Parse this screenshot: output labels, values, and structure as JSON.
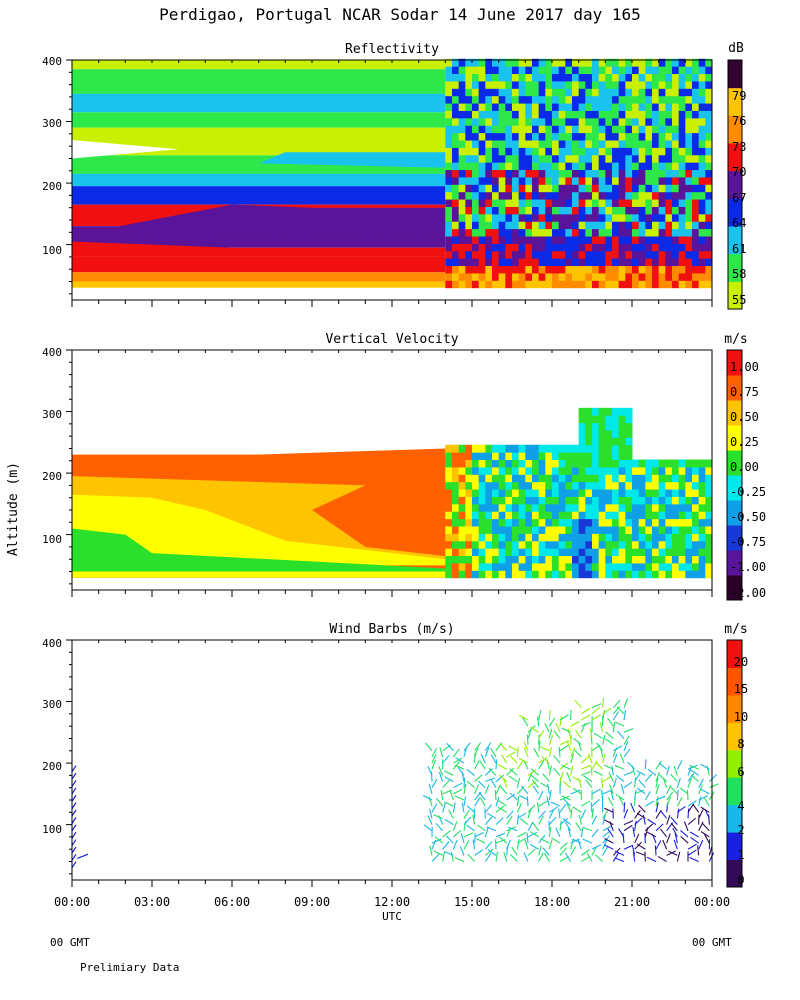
{
  "header": {
    "title": "Perdigao, Portugal  NCAR Sodar  14 June 2017  day 165"
  },
  "footer": {
    "gmt_left": "00 GMT",
    "gmt_right": "00 GMT",
    "note": "Prelimiary Data"
  },
  "colors": {
    "reflectivity": [
      "#c8f000",
      "#2ee84a",
      "#19c3ee",
      "#0a2ae8",
      "#5a1499",
      "#f01010",
      "#ff8c00",
      "#ffc400",
      "#320530"
    ],
    "velocity": [
      "#2a0028",
      "#5a1499",
      "#1838d8",
      "#10a0e8",
      "#00e8e8",
      "#2ae02a",
      "#ffff00",
      "#ffc400",
      "#ff6000",
      "#f01010"
    ],
    "wind": [
      "#330a55",
      "#1a20e0",
      "#18b8e8",
      "#20e060",
      "#90f000",
      "#ffc400",
      "#ff8800",
      "#ff5500",
      "#f01010"
    ]
  },
  "chart_data": [
    {
      "type": "heatmap",
      "title": "Reflectivity",
      "xlabel": "",
      "ylabel": "",
      "xlim": [
        0,
        24
      ],
      "ylim": [
        10,
        400
      ],
      "yticks": [
        "100",
        "200",
        "300",
        "400"
      ],
      "colorbar": {
        "unit": "dB",
        "labels": [
          "55",
          "58",
          "61",
          "64",
          "67",
          "70",
          "73",
          "76",
          "79"
        ]
      },
      "regions": [
        {
          "x": [
            0,
            14
          ],
          "y": [
            30,
            400
          ],
          "description": "horizontally layered returns"
        },
        {
          "x": [
            14,
            24
          ],
          "y": [
            30,
            400
          ],
          "description": "convective turbulent structure"
        }
      ]
    },
    {
      "type": "heatmap",
      "title": "Vertical Velocity",
      "xlabel": "",
      "ylabel": "Altitude (m)",
      "xlim": [
        0,
        24
      ],
      "ylim": [
        10,
        400
      ],
      "yticks": [
        "100",
        "200",
        "300",
        "400"
      ],
      "colorbar": {
        "unit": "m/s",
        "labels": [
          "-2.00",
          "-1.00",
          "-0.75",
          "-0.50",
          "-0.25",
          "0.00",
          "0.25",
          "0.50",
          "0.75",
          "1.00"
        ]
      }
    },
    {
      "type": "scatter",
      "title": "Wind Barbs (m/s)",
      "xlabel": "UTC",
      "ylabel": "",
      "xlim": [
        0,
        24
      ],
      "ylim": [
        10,
        400
      ],
      "yticks": [
        "100",
        "200",
        "300",
        "400"
      ],
      "xticks": [
        "00:00",
        "03:00",
        "06:00",
        "09:00",
        "12:00",
        "15:00",
        "18:00",
        "21:00",
        "00:00"
      ],
      "colorbar": {
        "unit": "m/s",
        "labels": [
          "0",
          "1",
          "2",
          "4",
          "6",
          "8",
          "10",
          "15",
          "20"
        ]
      }
    }
  ]
}
